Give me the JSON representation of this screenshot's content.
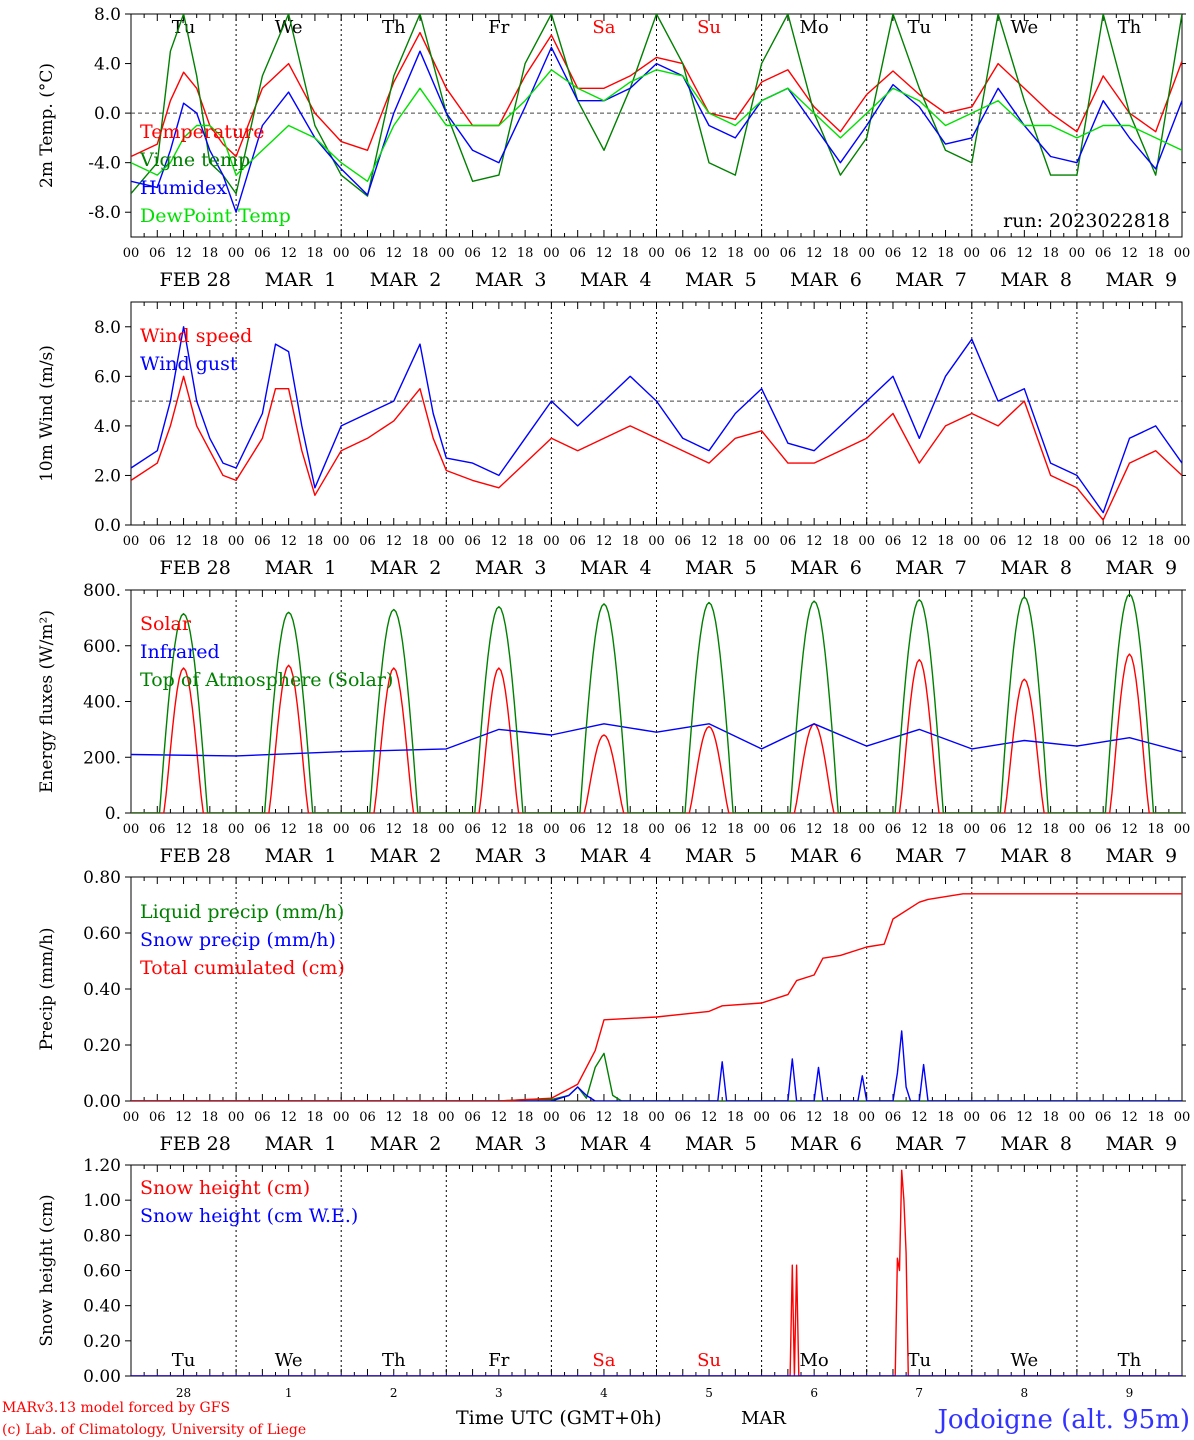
{
  "chart_data": [
    {
      "type": "line",
      "ylabel": "2m Temp. (°C)",
      "ylim": [
        -10,
        8
      ],
      "yticks": [
        "8.0",
        "4.0",
        "0.0",
        "-4.0",
        "-8.0"
      ],
      "ytick_values": [
        8,
        4,
        0,
        -4,
        -8
      ],
      "grid_lines": [
        0
      ],
      "annotation": "run: 2023022818",
      "legend": [
        "Temperature",
        "Vigne temp",
        "Humidex",
        "DewPoint Temp"
      ],
      "x_start": "2023-02-28T00",
      "series": [
        {
          "name": "Temperature",
          "color": "#ff0000",
          "x": [
            0,
            6,
            9,
            12,
            15,
            18,
            21,
            24,
            30,
            36,
            42,
            48,
            54,
            60,
            66,
            72,
            78,
            84,
            90,
            96,
            102,
            108,
            114,
            120,
            126,
            132,
            138,
            144,
            150,
            156,
            162,
            168,
            174,
            180,
            186,
            192,
            198,
            204,
            210,
            216,
            222,
            228,
            234,
            240
          ],
          "y": [
            -3.5,
            -2.5,
            1,
            3.3,
            2,
            -1,
            -2.5,
            -3.5,
            2,
            4,
            0,
            -2.3,
            -3,
            2.5,
            6.5,
            2,
            -1,
            -1,
            3,
            6.3,
            2,
            2,
            3,
            4.5,
            4,
            0,
            -0.5,
            2.5,
            3.5,
            0.5,
            -1.5,
            1.5,
            3.4,
            1.5,
            0,
            0.5,
            4,
            2,
            0,
            -1.5,
            3,
            0,
            -1.5,
            4.2
          ]
        },
        {
          "name": "Vigne temp",
          "color": "#008000",
          "x": [
            0,
            6,
            9,
            12,
            15,
            18,
            21,
            24,
            30,
            36,
            42,
            48,
            54,
            60,
            66,
            72,
            78,
            84,
            90,
            96,
            102,
            108,
            114,
            120,
            126,
            132,
            138,
            144,
            150,
            156,
            162,
            168,
            174,
            180,
            186,
            192,
            198,
            204,
            210,
            216,
            222,
            228,
            234,
            240
          ],
          "y": [
            -6.5,
            -4,
            5,
            8,
            3,
            -4,
            -5,
            -6.5,
            3,
            8,
            -1,
            -5,
            -6.7,
            3,
            8,
            0,
            -5.5,
            -5,
            4,
            8,
            1,
            -3,
            2,
            8,
            4,
            -4,
            -5,
            4,
            8,
            0,
            -5,
            -2,
            8,
            2,
            -3,
            -4,
            8,
            1,
            -5,
            -5,
            8,
            0,
            -5,
            8
          ]
        },
        {
          "name": "Humidex",
          "color": "#0000ff",
          "x": [
            0,
            6,
            9,
            12,
            15,
            18,
            21,
            24,
            30,
            36,
            42,
            48,
            54,
            60,
            66,
            72,
            78,
            84,
            90,
            96,
            102,
            108,
            114,
            120,
            126,
            132,
            138,
            144,
            150,
            156,
            162,
            168,
            174,
            180,
            186,
            192,
            198,
            204,
            210,
            216,
            222,
            228,
            234,
            240
          ],
          "y": [
            -5.5,
            -6,
            -3,
            0.8,
            0,
            -3,
            -5,
            -8,
            -1,
            1.7,
            -2,
            -4.5,
            -6.6,
            0,
            5,
            0,
            -3,
            -4,
            0.5,
            5.3,
            1,
            1,
            2,
            4,
            3,
            -1,
            -2,
            1,
            2,
            -1,
            -4,
            -1,
            2.3,
            0.5,
            -2.5,
            -2,
            2,
            -1,
            -3.5,
            -4,
            1,
            -2,
            -4.5,
            1
          ]
        },
        {
          "name": "DewPoint Temp",
          "color": "#00e000",
          "x": [
            0,
            6,
            9,
            12,
            15,
            18,
            21,
            24,
            30,
            36,
            42,
            48,
            54,
            60,
            66,
            72,
            78,
            84,
            90,
            96,
            102,
            108,
            114,
            120,
            126,
            132,
            138,
            144,
            150,
            156,
            162,
            168,
            174,
            180,
            186,
            192,
            198,
            204,
            210,
            216,
            222,
            228,
            234,
            240
          ],
          "y": [
            -4,
            -5,
            -4,
            -2,
            -1,
            -1,
            -2,
            -5,
            -3,
            -1,
            -2,
            -4,
            -5.5,
            -1,
            2,
            -1,
            -1,
            -1,
            1,
            3.5,
            2,
            1,
            2.5,
            3.5,
            3,
            0,
            -1,
            1,
            2,
            0,
            -2,
            0,
            2,
            1,
            -1,
            0,
            1,
            -1,
            -1,
            -2,
            -1,
            -1,
            -2,
            -3
          ]
        }
      ]
    },
    {
      "type": "line",
      "ylabel": "10m Wind (m/s)",
      "ylim": [
        0,
        9
      ],
      "yticks": [
        "8.0",
        "6.0",
        "4.0",
        "2.0",
        "0.0"
      ],
      "ytick_values": [
        8,
        6,
        4,
        2,
        0
      ],
      "grid_lines": [
        5
      ],
      "legend": [
        "Wind speed",
        "Wind gust"
      ],
      "x_start": "2023-02-28T00",
      "series": [
        {
          "name": "Wind speed",
          "color": "#ff0000",
          "x": [
            0,
            6,
            9,
            12,
            15,
            18,
            21,
            24,
            30,
            33,
            36,
            39,
            42,
            48,
            54,
            60,
            66,
            69,
            72,
            78,
            84,
            90,
            96,
            102,
            108,
            114,
            120,
            126,
            132,
            138,
            144,
            150,
            156,
            162,
            168,
            174,
            180,
            186,
            192,
            198,
            204,
            210,
            216,
            222,
            228,
            234,
            240
          ],
          "y": [
            1.8,
            2.5,
            4,
            6,
            4,
            3,
            2,
            1.8,
            3.5,
            5.5,
            5.5,
            3,
            1.2,
            3,
            3.5,
            4.2,
            5.5,
            3.5,
            2.2,
            1.8,
            1.5,
            2.5,
            3.5,
            3,
            3.5,
            4,
            3.5,
            3,
            2.5,
            3.5,
            3.8,
            2.5,
            2.5,
            3,
            3.5,
            4.5,
            2.5,
            4,
            4.5,
            4,
            5,
            2,
            1.5,
            0.2,
            2.5,
            3,
            2
          ]
        },
        {
          "name": "Wind gust",
          "color": "#0000ff",
          "x": [
            0,
            6,
            9,
            12,
            15,
            18,
            21,
            24,
            30,
            33,
            36,
            39,
            42,
            48,
            54,
            60,
            66,
            69,
            72,
            78,
            84,
            90,
            96,
            102,
            108,
            114,
            120,
            126,
            132,
            138,
            144,
            150,
            156,
            162,
            168,
            174,
            180,
            186,
            192,
            198,
            204,
            210,
            216,
            222,
            228,
            234,
            240
          ],
          "y": [
            2.3,
            3,
            5,
            8,
            5,
            3.5,
            2.5,
            2.3,
            4.5,
            7.3,
            7,
            4,
            1.5,
            4,
            4.5,
            5,
            7.3,
            4.5,
            2.7,
            2.5,
            2,
            3.5,
            5,
            4,
            5,
            6,
            5,
            3.5,
            3,
            4.5,
            5.5,
            3.3,
            3,
            4,
            5,
            6,
            3.5,
            6,
            7.5,
            5,
            5.5,
            2.5,
            2,
            0.5,
            3.5,
            4,
            2.5
          ]
        }
      ]
    },
    {
      "type": "line",
      "ylabel": "Energy fluxes (W/m²)",
      "ylim": [
        0,
        800
      ],
      "yticks": [
        "800.",
        "600.",
        "400.",
        "200.",
        "0."
      ],
      "ytick_values": [
        800,
        600,
        400,
        200,
        0
      ],
      "legend": [
        "Solar",
        "Infrared",
        "Top of Atmosphere (Solar)"
      ],
      "x_start": "2023-02-28T00",
      "series": [
        {
          "name": "Solar",
          "color": "#ff0000",
          "diurnal_peaks": [
            520,
            530,
            520,
            520,
            280,
            310,
            320,
            550,
            480,
            570
          ]
        },
        {
          "name": "Infrared",
          "color": "#0000ff",
          "x": [
            0,
            24,
            48,
            72,
            84,
            96,
            108,
            120,
            132,
            144,
            156,
            168,
            180,
            192,
            204,
            216,
            228,
            240
          ],
          "y": [
            210,
            205,
            220,
            230,
            300,
            280,
            320,
            290,
            320,
            230,
            320,
            240,
            300,
            230,
            260,
            240,
            270,
            220
          ]
        },
        {
          "name": "Top of Atmosphere (Solar)",
          "color": "#008000",
          "diurnal_peaks": [
            715,
            720,
            730,
            740,
            750,
            755,
            760,
            765,
            775,
            785
          ]
        }
      ]
    },
    {
      "type": "line",
      "ylabel": "Precip (mm/h)",
      "ylim": [
        0,
        0.8
      ],
      "yticks": [
        "0.80",
        "0.60",
        "0.40",
        "0.20",
        "0.00"
      ],
      "ytick_values": [
        0.8,
        0.6,
        0.4,
        0.2,
        0
      ],
      "legend": [
        "Liquid precip (mm/h)",
        "Snow precip (mm/h)",
        "Total cumulated (cm)"
      ],
      "x_start": "2023-02-28T00",
      "series": [
        {
          "name": "Liquid precip (mm/h)",
          "color": "#008000",
          "x": [
            0,
            84,
            90,
            96,
            100,
            102,
            104,
            106,
            108,
            110,
            112,
            114,
            116,
            120,
            240
          ],
          "y": [
            0,
            0,
            0.005,
            0.005,
            0.02,
            0.05,
            0.01,
            0.12,
            0.17,
            0.02,
            0,
            0,
            0,
            0,
            0
          ]
        },
        {
          "name": "Snow precip (mm/h)",
          "color": "#0000ff",
          "x": [
            0,
            96,
            100,
            102,
            104,
            106,
            134,
            135,
            136,
            150,
            151,
            152,
            156,
            157,
            158,
            166,
            167,
            168,
            174,
            175,
            176,
            177,
            178,
            180,
            181,
            182,
            183,
            240
          ],
          "y": [
            0,
            0,
            0.02,
            0.05,
            0.02,
            0,
            0,
            0.14,
            0,
            0,
            0.15,
            0,
            0,
            0.12,
            0,
            0,
            0.09,
            0,
            0,
            0.1,
            0.25,
            0.05,
            0,
            0,
            0.13,
            0,
            0,
            0
          ]
        },
        {
          "name": "Total cumulated (cm)",
          "color": "#ff0000",
          "x": [
            0,
            84,
            96,
            102,
            106,
            108,
            120,
            132,
            135,
            144,
            150,
            152,
            156,
            158,
            162,
            168,
            172,
            174,
            180,
            182,
            190,
            240
          ],
          "y": [
            0,
            0,
            0.01,
            0.06,
            0.18,
            0.29,
            0.3,
            0.32,
            0.34,
            0.35,
            0.38,
            0.43,
            0.45,
            0.51,
            0.52,
            0.55,
            0.56,
            0.65,
            0.71,
            0.72,
            0.74,
            0.74
          ]
        }
      ]
    },
    {
      "type": "line",
      "ylabel": "Snow height (cm)",
      "ylim": [
        0,
        1.2
      ],
      "yticks": [
        "1.20",
        "1.00",
        "0.80",
        "0.60",
        "0.40",
        "0.20",
        "0.00"
      ],
      "ytick_values": [
        1.2,
        1.0,
        0.8,
        0.6,
        0.4,
        0.2,
        0
      ],
      "legend": [
        "Snow height (cm)",
        "Snow height (cm W.E.)"
      ],
      "x_start": "2023-02-28T00",
      "series": [
        {
          "name": "Snow height (cm)",
          "color": "#ff0000",
          "x": [
            0,
            150.5,
            151,
            151.5,
            152,
            152.5,
            153,
            174.5,
            175,
            175.5,
            176,
            176.5,
            177,
            177.5,
            240
          ],
          "y": [
            0,
            0,
            0.63,
            0,
            0.63,
            0,
            0,
            0,
            0.67,
            0.6,
            1.17,
            1.0,
            0.7,
            0,
            0
          ]
        },
        {
          "name": "Snow height (cm W.E.)",
          "color": "#0000ff",
          "x": [
            0,
            240
          ],
          "y": [
            0,
            0
          ]
        }
      ]
    }
  ],
  "x_axis": {
    "hour_ticks": [
      "00",
      "06",
      "12",
      "18"
    ],
    "end_tick": "00",
    "date_labels": [
      "FEB 28",
      "MAR  1",
      "MAR  2",
      "MAR  3",
      "MAR  4",
      "MAR  5",
      "MAR  6",
      "MAR  7",
      "MAR  8",
      "MAR  9"
    ],
    "weekdays": [
      "Tu",
      "We",
      "Th",
      "Fr",
      "Sa",
      "Su",
      "Mo",
      "Tu",
      "We",
      "Th"
    ],
    "weekend_color": "#ff0000",
    "bottom_day_numbers": [
      "28",
      "1",
      "2",
      "3",
      "4",
      "5",
      "6",
      "7",
      "8",
      "9"
    ],
    "bottom_month": "MAR",
    "bottom_title": "Time UTC (GMT+0h)"
  },
  "footer": {
    "credit_line1": "MARv3.13 model forced by GFS",
    "credit_line2": "(c) Lab. of Climatology, University of Liege",
    "station": "Jodoigne (alt. 95m)",
    "credit_color": "#ff0000",
    "station_color": "#3333ff"
  }
}
